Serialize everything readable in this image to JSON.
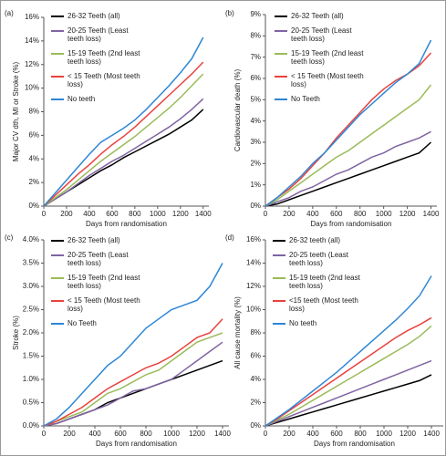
{
  "chart_data": [
    {
      "type": "line",
      "panel": "(a)",
      "y_label": "Major CV dth, MI or Stroke (%)",
      "x_label": "Days from randomisation",
      "x": [
        0,
        100,
        200,
        300,
        400,
        500,
        600,
        700,
        800,
        900,
        1000,
        1100,
        1200,
        1300,
        1400
      ],
      "xlim": [
        0,
        1450
      ],
      "xticks": [
        0,
        200,
        400,
        600,
        800,
        1000,
        1200,
        1400
      ],
      "ylim": [
        0,
        16
      ],
      "yticks": [
        {
          "value": 0,
          "label": "0%"
        },
        {
          "value": 2,
          "label": "2%"
        },
        {
          "value": 4,
          "label": "4%"
        },
        {
          "value": 6,
          "label": "6%"
        },
        {
          "value": 8,
          "label": "8%"
        },
        {
          "value": 10,
          "label": "10%"
        },
        {
          "value": 12,
          "label": "12%"
        },
        {
          "value": 14,
          "label": "14%"
        },
        {
          "value": 16,
          "label": "16%"
        }
      ],
      "series": [
        {
          "name": "26-32 Teeth (all)",
          "color": "#000000",
          "values": [
            0,
            0.6,
            1.2,
            1.8,
            2.4,
            3.0,
            3.5,
            4.1,
            4.6,
            5.1,
            5.6,
            6.1,
            6.7,
            7.3,
            8.2
          ]
        },
        {
          "name": "20-25 Teeth (Least teeth loss)",
          "color": "#8064a2",
          "values": [
            0,
            0.6,
            1.2,
            1.9,
            2.6,
            3.2,
            3.8,
            4.3,
            4.9,
            5.5,
            6.1,
            6.7,
            7.4,
            8.2,
            9.1
          ]
        },
        {
          "name": "15-19 Teeth (2nd least teeth loss)",
          "color": "#9bbb59",
          "values": [
            0,
            0.7,
            1.4,
            2.2,
            3.0,
            3.8,
            4.5,
            5.2,
            5.9,
            6.7,
            7.5,
            8.3,
            9.2,
            10.2,
            11.2
          ]
        },
        {
          "name": "< 15 Teeth (Most teeth loss)",
          "color": "#e8423e",
          "values": [
            0,
            0.9,
            1.8,
            2.7,
            3.5,
            4.4,
            5.2,
            5.9,
            6.7,
            7.6,
            8.5,
            9.4,
            10.3,
            11.2,
            12.2
          ]
        },
        {
          "name": "No teeth",
          "color": "#2e86d6",
          "values": [
            0,
            1.1,
            2.2,
            3.3,
            4.4,
            5.4,
            6.0,
            6.6,
            7.3,
            8.2,
            9.2,
            10.2,
            11.3,
            12.5,
            14.3
          ]
        }
      ]
    },
    {
      "type": "line",
      "panel": "(b)",
      "y_label": "Cardiovascular death (%)",
      "x_label": "Days from randomisation",
      "x": [
        0,
        100,
        200,
        300,
        400,
        500,
        600,
        700,
        800,
        900,
        1000,
        1100,
        1200,
        1300,
        1400
      ],
      "xlim": [
        0,
        1450
      ],
      "xticks": [
        0,
        200,
        400,
        600,
        800,
        1000,
        1200,
        1400
      ],
      "ylim": [
        0,
        9
      ],
      "yticks": [
        {
          "value": 0,
          "label": "0%"
        },
        {
          "value": 1,
          "label": "1%"
        },
        {
          "value": 2,
          "label": "2%"
        },
        {
          "value": 3,
          "label": "3%"
        },
        {
          "value": 4,
          "label": "4%"
        },
        {
          "value": 5,
          "label": "5%"
        },
        {
          "value": 6,
          "label": "6%"
        },
        {
          "value": 7,
          "label": "7%"
        },
        {
          "value": 8,
          "label": "8%"
        },
        {
          "value": 9,
          "label": "9%"
        }
      ],
      "series": [
        {
          "name": "26-32 Teeth (all)",
          "color": "#000000",
          "values": [
            0,
            0.1,
            0.3,
            0.5,
            0.7,
            0.9,
            1.1,
            1.3,
            1.5,
            1.7,
            1.9,
            2.1,
            2.3,
            2.5,
            3.0
          ]
        },
        {
          "name": "20-25 Teeth (Least teeth loss)",
          "color": "#8064a2",
          "values": [
            0,
            0.2,
            0.4,
            0.7,
            0.9,
            1.2,
            1.5,
            1.7,
            2.0,
            2.3,
            2.5,
            2.8,
            3.0,
            3.2,
            3.5
          ]
        },
        {
          "name": "15-19 Teeth (2nd least teeth loss)",
          "color": "#9bbb59",
          "values": [
            0,
            0.3,
            0.7,
            1.1,
            1.5,
            1.9,
            2.3,
            2.6,
            3.0,
            3.4,
            3.8,
            4.2,
            4.6,
            5.0,
            5.7
          ]
        },
        {
          "name": "< 15 Teeth (Most teeth loss)",
          "color": "#e8423e",
          "values": [
            0,
            0.4,
            0.8,
            1.3,
            1.9,
            2.5,
            3.2,
            3.8,
            4.4,
            5.0,
            5.5,
            5.9,
            6.2,
            6.6,
            7.2
          ]
        },
        {
          "name": "No Teeth",
          "color": "#2e86d6",
          "values": [
            0,
            0.4,
            0.9,
            1.4,
            2.0,
            2.5,
            3.1,
            3.7,
            4.3,
            4.8,
            5.3,
            5.8,
            6.2,
            6.7,
            7.8
          ]
        }
      ]
    },
    {
      "type": "line",
      "panel": "(c)",
      "y_label": "Stroke (%)",
      "x_label": "Days from randomisation",
      "x": [
        0,
        100,
        200,
        300,
        400,
        500,
        600,
        700,
        800,
        900,
        1000,
        1100,
        1200,
        1300,
        1400
      ],
      "xlim": [
        0,
        1450
      ],
      "xticks": [
        0,
        200,
        400,
        600,
        800,
        1000,
        1200,
        1400
      ],
      "ylim": [
        0,
        4
      ],
      "yticks": [
        {
          "value": 0,
          "label": "0.0%"
        },
        {
          "value": 0.5,
          "label": "0.5%"
        },
        {
          "value": 1,
          "label": "1.0%"
        },
        {
          "value": 1.5,
          "label": "1.5%"
        },
        {
          "value": 2,
          "label": "2.0%"
        },
        {
          "value": 2.5,
          "label": "2.5%"
        },
        {
          "value": 3,
          "label": "3.0%"
        },
        {
          "value": 3.5,
          "label": "3.5%"
        },
        {
          "value": 4,
          "label": "4.0%"
        }
      ],
      "series": [
        {
          "name": "26-32 Teeth (all)",
          "color": "#000000",
          "values": [
            0,
            0.05,
            0.15,
            0.25,
            0.35,
            0.5,
            0.6,
            0.7,
            0.8,
            0.9,
            1.0,
            1.1,
            1.2,
            1.3,
            1.4
          ]
        },
        {
          "name": "20-25 Teeth (Least teeth loss)",
          "color": "#8064a2",
          "values": [
            0,
            0.05,
            0.15,
            0.25,
            0.35,
            0.45,
            0.6,
            0.75,
            0.8,
            0.9,
            1.0,
            1.2,
            1.4,
            1.6,
            1.8
          ]
        },
        {
          "name": "15-19 Teeth (2nd least teeth loss)",
          "color": "#9bbb59",
          "values": [
            0,
            0.1,
            0.2,
            0.3,
            0.5,
            0.7,
            0.8,
            0.95,
            1.1,
            1.2,
            1.4,
            1.6,
            1.8,
            1.9,
            2.0
          ]
        },
        {
          "name": "< 15 Teeth (Most teeth loss)",
          "color": "#e8423e",
          "values": [
            0,
            0.1,
            0.25,
            0.4,
            0.6,
            0.8,
            0.95,
            1.1,
            1.25,
            1.35,
            1.5,
            1.7,
            1.9,
            2.0,
            2.3
          ]
        },
        {
          "name": "No Teeth",
          "color": "#2e86d6",
          "values": [
            0,
            0.15,
            0.4,
            0.7,
            1.0,
            1.3,
            1.5,
            1.8,
            2.1,
            2.3,
            2.5,
            2.6,
            2.7,
            3.0,
            3.5
          ]
        }
      ]
    },
    {
      "type": "line",
      "panel": "(d)",
      "y_label": "All cause mortality (%)",
      "x_label": "Days from randomisation",
      "x": [
        0,
        100,
        200,
        300,
        400,
        500,
        600,
        700,
        800,
        900,
        1000,
        1100,
        1200,
        1300,
        1400
      ],
      "xlim": [
        0,
        1500
      ],
      "xticks": [
        0,
        200,
        400,
        600,
        800,
        1000,
        1200,
        1400
      ],
      "ylim": [
        0,
        16
      ],
      "yticks": [
        {
          "value": 0,
          "label": "0%"
        },
        {
          "value": 2,
          "label": "2%"
        },
        {
          "value": 4,
          "label": "4%"
        },
        {
          "value": 6,
          "label": "6%"
        },
        {
          "value": 8,
          "label": "8%"
        },
        {
          "value": 10,
          "label": "10%"
        },
        {
          "value": 12,
          "label": "12%"
        },
        {
          "value": 14,
          "label": "14%"
        },
        {
          "value": 16,
          "label": "16%"
        }
      ],
      "series": [
        {
          "name": "26-32 teeth (all)",
          "color": "#000000",
          "values": [
            0,
            0.3,
            0.6,
            0.9,
            1.2,
            1.5,
            1.8,
            2.1,
            2.4,
            2.7,
            3.0,
            3.3,
            3.6,
            3.9,
            4.4
          ]
        },
        {
          "name": "20-25 teeth (Least teeth loss)",
          "color": "#8064a2",
          "values": [
            0,
            0.4,
            0.8,
            1.2,
            1.6,
            2.0,
            2.4,
            2.8,
            3.2,
            3.6,
            4.0,
            4.4,
            4.8,
            5.2,
            5.6
          ]
        },
        {
          "name": "15-19 teeth (2nd least teeth loss)",
          "color": "#9bbb59",
          "values": [
            0,
            0.5,
            1.0,
            1.6,
            2.2,
            2.8,
            3.4,
            4.0,
            4.6,
            5.2,
            5.8,
            6.4,
            7.0,
            7.7,
            8.6
          ]
        },
        {
          "name": "<15 teeth (Most teeth loss)",
          "color": "#e8423e",
          "values": [
            0,
            0.6,
            1.3,
            2.0,
            2.7,
            3.4,
            4.1,
            4.8,
            5.5,
            6.2,
            6.9,
            7.6,
            8.2,
            8.7,
            9.3
          ]
        },
        {
          "name": "No teeth",
          "color": "#2e86d6",
          "values": [
            0,
            0.7,
            1.4,
            2.2,
            3.0,
            3.8,
            4.6,
            5.5,
            6.4,
            7.3,
            8.2,
            9.1,
            10.1,
            11.2,
            12.9
          ]
        }
      ]
    }
  ]
}
